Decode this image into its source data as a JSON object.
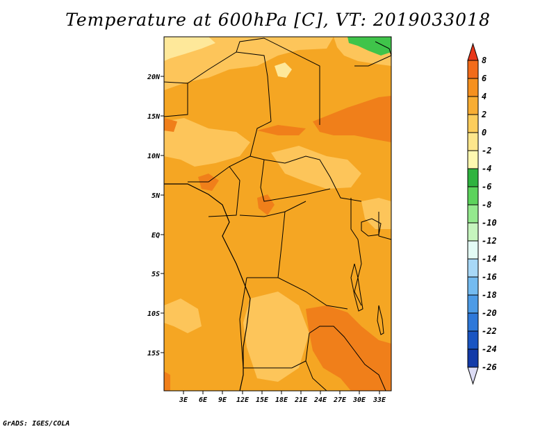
{
  "title": "Temperature at 600hPa [C], VT: 2019033018",
  "credit": "GrADS: IGES/COLA",
  "map": {
    "lat_labels": [
      "20N",
      "15N",
      "10N",
      "5N",
      "EQ",
      "5S",
      "10S",
      "15S"
    ],
    "lon_labels": [
      "3E",
      "6E",
      "9E",
      "12E",
      "15E",
      "18E",
      "21E",
      "24E",
      "27E",
      "30E",
      "33E"
    ],
    "colors": {
      "base": "#f5a623",
      "warm_patch": "#f07f1a",
      "cool_patch": "#fdc55a",
      "cold_patch": "#fee89a",
      "green_patch": "#3fc44a",
      "border": "#000000"
    }
  },
  "colorbar": {
    "labels": [
      "8",
      "6",
      "4",
      "2",
      "0",
      "-2",
      "-4",
      "-6",
      "-8",
      "-10",
      "-12",
      "-14",
      "-16",
      "-18",
      "-20",
      "-22",
      "-24",
      "-26"
    ],
    "colors": [
      "#e8371a",
      "#f26b1a",
      "#f5901f",
      "#f8ad33",
      "#fccd5c",
      "#fde68c",
      "#fef8b0",
      "#2fb33f",
      "#5cd35c",
      "#94e98e",
      "#c6f5be",
      "#e3fbf5",
      "#a8d8f7",
      "#74bbf0",
      "#4d9be6",
      "#2e78d9",
      "#1a55c2",
      "#123aa8",
      "#0b1e80"
    ]
  }
}
